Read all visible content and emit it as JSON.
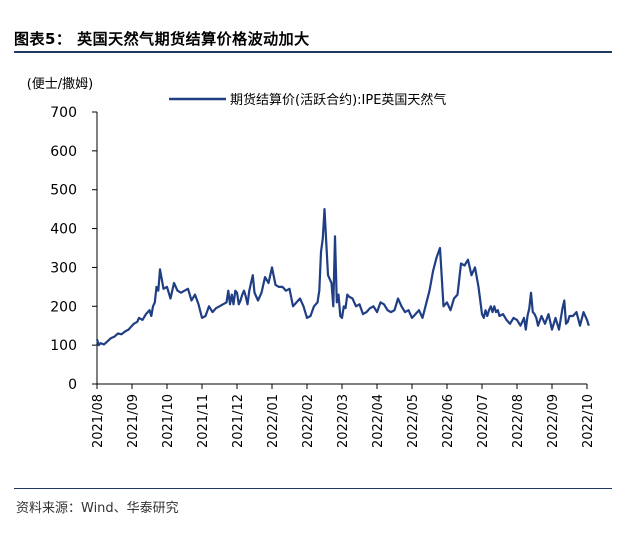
{
  "figure_title": "图表5： 英国天然气期货结算价格波动加大",
  "source": "资料来源：Wind、华泰研究",
  "colors": {
    "series": "#1f3e84",
    "axis": "#000000",
    "rule": "#1f3864"
  },
  "chart_data": {
    "type": "line",
    "title": "英国天然气期货结算价格波动加大",
    "ylabel": "(便士/撒姆)",
    "xlabel": "",
    "ylim": [
      0,
      700
    ],
    "yticks": [
      0,
      100,
      200,
      300,
      400,
      500,
      600,
      700
    ],
    "grid": false,
    "legend_position": "top-right",
    "categories": [
      "2021/08",
      "2021/09",
      "2021/10",
      "2021/11",
      "2021/12",
      "2022/01",
      "2022/02",
      "2022/03",
      "2022/04",
      "2022/05",
      "2022/06",
      "2022/07",
      "2022/08",
      "2022/09",
      "2022/10"
    ],
    "series": [
      {
        "name": "期货结算价(活跃合约):IPE英国天然气",
        "x": [
          0,
          0.05,
          0.1,
          0.2,
          0.3,
          0.4,
          0.5,
          0.6,
          0.7,
          0.8,
          0.9,
          1.0,
          1.05,
          1.15,
          1.2,
          1.3,
          1.4,
          1.5,
          1.55,
          1.6,
          1.65,
          1.7,
          1.75,
          1.8,
          1.9,
          2.0,
          2.1,
          2.2,
          2.3,
          2.4,
          2.5,
          2.6,
          2.7,
          2.8,
          2.9,
          3.0,
          3.1,
          3.2,
          3.3,
          3.4,
          3.5,
          3.6,
          3.7,
          3.75,
          3.8,
          3.85,
          3.9,
          3.95,
          4.0,
          4.05,
          4.1,
          4.15,
          4.2,
          4.25,
          4.3,
          4.35,
          4.4,
          4.45,
          4.5,
          4.6,
          4.7,
          4.8,
          4.9,
          5.0,
          5.1,
          5.2,
          5.3,
          5.4,
          5.5,
          5.6,
          5.7,
          5.8,
          5.9,
          6.0,
          6.1,
          6.2,
          6.3,
          6.35,
          6.4,
          6.45,
          6.5,
          6.6,
          6.7,
          6.75,
          6.8,
          6.85,
          6.9,
          6.95,
          7.0,
          7.05,
          7.1,
          7.15,
          7.2,
          7.3,
          7.4,
          7.5,
          7.6,
          7.7,
          7.8,
          7.9,
          8.0,
          8.1,
          8.2,
          8.3,
          8.4,
          8.5,
          8.6,
          8.7,
          8.8,
          8.9,
          9.0,
          9.1,
          9.2,
          9.3,
          9.4,
          9.5,
          9.6,
          9.7,
          9.8,
          9.9,
          10.0,
          10.1,
          10.2,
          10.3,
          10.4,
          10.5,
          10.6,
          10.7,
          10.8,
          10.9,
          11.0,
          11.05,
          11.1,
          11.15,
          11.2,
          11.25,
          11.3,
          11.35,
          11.4,
          11.45,
          11.5,
          11.6,
          11.7,
          11.8,
          11.9,
          12.0,
          12.1,
          12.15,
          12.2,
          12.25,
          12.3,
          12.35,
          12.4,
          12.45,
          12.5,
          12.55,
          12.6,
          12.7,
          12.8,
          12.9,
          13.0,
          13.1,
          13.2,
          13.3,
          13.35,
          13.4,
          13.45,
          13.5,
          13.6,
          13.7,
          13.8,
          13.9,
          14.0,
          14.05
        ],
        "values": [
          115,
          100,
          105,
          102,
          110,
          118,
          122,
          130,
          128,
          135,
          140,
          150,
          155,
          160,
          170,
          165,
          180,
          190,
          175,
          200,
          210,
          250,
          240,
          295,
          245,
          250,
          220,
          260,
          240,
          235,
          240,
          245,
          215,
          230,
          205,
          170,
          175,
          200,
          185,
          195,
          200,
          205,
          210,
          240,
          205,
          230,
          205,
          240,
          235,
          205,
          215,
          230,
          240,
          225,
          205,
          240,
          260,
          280,
          235,
          215,
          235,
          275,
          260,
          300,
          255,
          250,
          250,
          240,
          245,
          200,
          210,
          220,
          200,
          170,
          175,
          200,
          210,
          240,
          340,
          375,
          450,
          280,
          260,
          200,
          380,
          210,
          230,
          175,
          170,
          200,
          195,
          230,
          225,
          220,
          200,
          205,
          180,
          185,
          195,
          200,
          185,
          210,
          205,
          190,
          185,
          190,
          220,
          200,
          185,
          190,
          170,
          180,
          190,
          170,
          205,
          240,
          290,
          325,
          350,
          200,
          210,
          190,
          220,
          230,
          310,
          305,
          320,
          280,
          300,
          250,
          180,
          170,
          190,
          175,
          190,
          200,
          185,
          200,
          185,
          190,
          175,
          180,
          165,
          155,
          170,
          165,
          150,
          160,
          170,
          140,
          175,
          195,
          235,
          185,
          180,
          170,
          150,
          175,
          155,
          180,
          140,
          170,
          140,
          195,
          215,
          155,
          160,
          175,
          175,
          185,
          150,
          185,
          165,
          150
        ],
        "color": "#1f3e84"
      }
    ]
  }
}
